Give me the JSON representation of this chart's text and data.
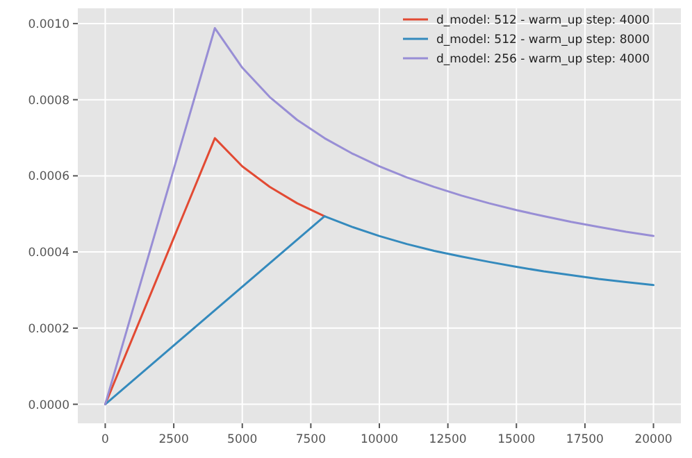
{
  "chart_data": {
    "type": "line",
    "xlim": [
      -1000,
      21000
    ],
    "ylim": [
      -5e-05,
      0.00104
    ],
    "xticks": [
      0,
      2500,
      5000,
      7500,
      10000,
      12500,
      15000,
      17500,
      20000
    ],
    "yticks": [
      {
        "value": 0,
        "label": "0.0000"
      },
      {
        "value": 0.0002,
        "label": "0.0002"
      },
      {
        "value": 0.0004,
        "label": "0.0004"
      },
      {
        "value": 0.0006,
        "label": "0.0006"
      },
      {
        "value": 0.0008,
        "label": "0.0008"
      },
      {
        "value": 0.001,
        "label": "0.0010"
      }
    ],
    "grid": true,
    "legend": "top right",
    "line_style": "solid",
    "marker": "none",
    "series": [
      {
        "name": "d_model: 512 - warm_up step: 4000",
        "color": "#e24a33",
        "x": [
          0,
          4000,
          5000,
          6000,
          7000,
          8000
        ],
        "values": [
          0,
          0.000699,
          0.000625,
          0.000571,
          0.000528,
          0.000494
        ]
      },
      {
        "name": "d_model: 512 - warm_up step: 8000",
        "color": "#348abd",
        "x": [
          0,
          8000,
          9000,
          10000,
          11000,
          12000,
          13000,
          14000,
          15000,
          16000,
          17000,
          18000,
          19000,
          20000
        ],
        "values": [
          0,
          0.000494,
          0.000466,
          0.000442,
          0.000421,
          0.000403,
          0.000388,
          0.000374,
          0.000361,
          0.000349,
          0.000339,
          0.000329,
          0.000321,
          0.000313
        ]
      },
      {
        "name": "d_model: 256 - warm_up step: 4000",
        "color": "#988ed5",
        "x": [
          0,
          4000,
          5000,
          6000,
          7000,
          8000,
          9000,
          10000,
          11000,
          12000,
          13000,
          14000,
          15000,
          16000,
          17000,
          18000,
          19000,
          20000
        ],
        "values": [
          0,
          0.000988,
          0.000884,
          0.000807,
          0.000747,
          0.000699,
          0.000659,
          0.000625,
          0.000596,
          0.000571,
          0.000548,
          0.000528,
          0.00051,
          0.000494,
          0.000479,
          0.000466,
          0.000453,
          0.000442
        ]
      }
    ]
  }
}
